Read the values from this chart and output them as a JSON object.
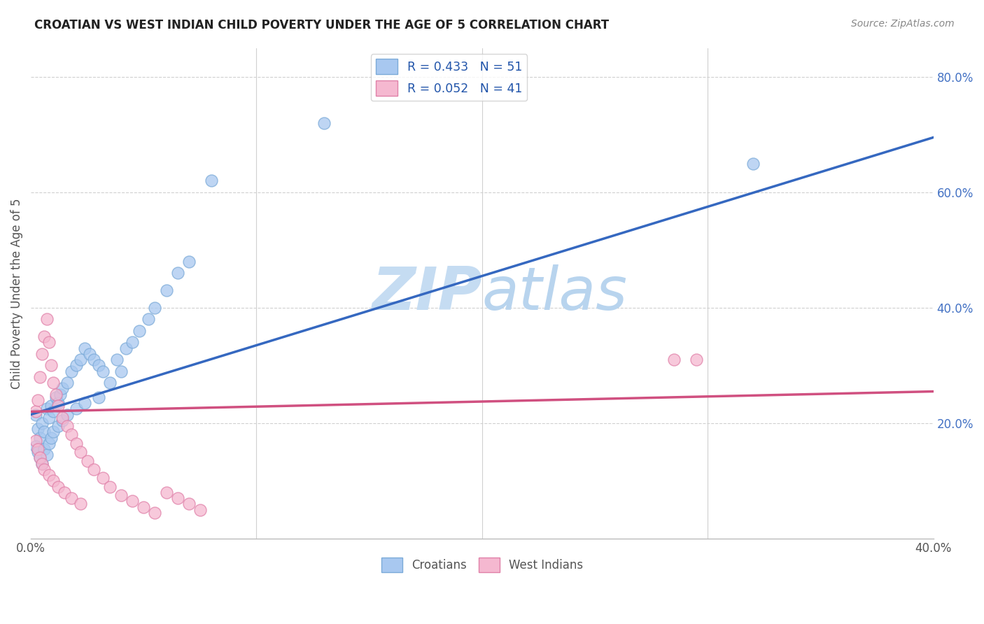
{
  "title": "CROATIAN VS WEST INDIAN CHILD POVERTY UNDER THE AGE OF 5 CORRELATION CHART",
  "source": "Source: ZipAtlas.com",
  "ylabel": "Child Poverty Under the Age of 5",
  "croatian_color": "#A8C8F0",
  "croatian_edge": "#7BAAD8",
  "west_indian_color": "#F5B8D0",
  "west_indian_edge": "#E080A8",
  "croatian_line_color": "#3568C0",
  "west_indian_line_color": "#D05080",
  "croatian_R": 0.433,
  "croatian_N": 51,
  "west_indian_R": 0.052,
  "west_indian_N": 41,
  "watermark_color": "#C8DFF5",
  "right_tick_color": "#4472C4",
  "title_color": "#222222",
  "source_color": "#888888",
  "label_color": "#555555",
  "legend_label_color": "#2255AA",
  "xlim": [
    0.0,
    0.4
  ],
  "ylim": [
    0.0,
    0.85
  ],
  "cr_line_x0": 0.0,
  "cr_line_y0": 0.215,
  "cr_line_x1": 0.4,
  "cr_line_y1": 0.695,
  "wi_line_x0": 0.0,
  "wi_line_y0": 0.22,
  "wi_line_x1": 0.4,
  "wi_line_y1": 0.255,
  "croatian_x": [
    0.002,
    0.003,
    0.004,
    0.005,
    0.006,
    0.007,
    0.008,
    0.009,
    0.01,
    0.011,
    0.012,
    0.013,
    0.014,
    0.016,
    0.018,
    0.02,
    0.022,
    0.024,
    0.026,
    0.028,
    0.03,
    0.032,
    0.035,
    0.038,
    0.04,
    0.042,
    0.045,
    0.048,
    0.052,
    0.055,
    0.06,
    0.065,
    0.07,
    0.002,
    0.003,
    0.004,
    0.005,
    0.006,
    0.007,
    0.008,
    0.009,
    0.01,
    0.012,
    0.014,
    0.016,
    0.02,
    0.024,
    0.03,
    0.13,
    0.32,
    0.08
  ],
  "croatian_y": [
    0.215,
    0.19,
    0.175,
    0.2,
    0.185,
    0.225,
    0.21,
    0.23,
    0.22,
    0.245,
    0.235,
    0.25,
    0.26,
    0.27,
    0.29,
    0.3,
    0.31,
    0.33,
    0.32,
    0.31,
    0.3,
    0.29,
    0.27,
    0.31,
    0.29,
    0.33,
    0.34,
    0.36,
    0.38,
    0.4,
    0.43,
    0.46,
    0.48,
    0.16,
    0.15,
    0.14,
    0.13,
    0.155,
    0.145,
    0.165,
    0.175,
    0.185,
    0.195,
    0.205,
    0.215,
    0.225,
    0.235,
    0.245,
    0.72,
    0.65,
    0.62
  ],
  "west_indian_x": [
    0.002,
    0.003,
    0.004,
    0.005,
    0.006,
    0.007,
    0.008,
    0.009,
    0.01,
    0.011,
    0.012,
    0.014,
    0.016,
    0.018,
    0.02,
    0.022,
    0.025,
    0.028,
    0.032,
    0.035,
    0.04,
    0.045,
    0.05,
    0.055,
    0.06,
    0.065,
    0.07,
    0.075,
    0.002,
    0.003,
    0.004,
    0.005,
    0.006,
    0.008,
    0.01,
    0.012,
    0.015,
    0.018,
    0.022,
    0.285,
    0.295
  ],
  "west_indian_y": [
    0.22,
    0.24,
    0.28,
    0.32,
    0.35,
    0.38,
    0.34,
    0.3,
    0.27,
    0.25,
    0.23,
    0.21,
    0.195,
    0.18,
    0.165,
    0.15,
    0.135,
    0.12,
    0.105,
    0.09,
    0.075,
    0.065,
    0.055,
    0.045,
    0.08,
    0.07,
    0.06,
    0.05,
    0.17,
    0.155,
    0.14,
    0.13,
    0.12,
    0.11,
    0.1,
    0.09,
    0.08,
    0.07,
    0.06,
    0.31,
    0.31
  ]
}
